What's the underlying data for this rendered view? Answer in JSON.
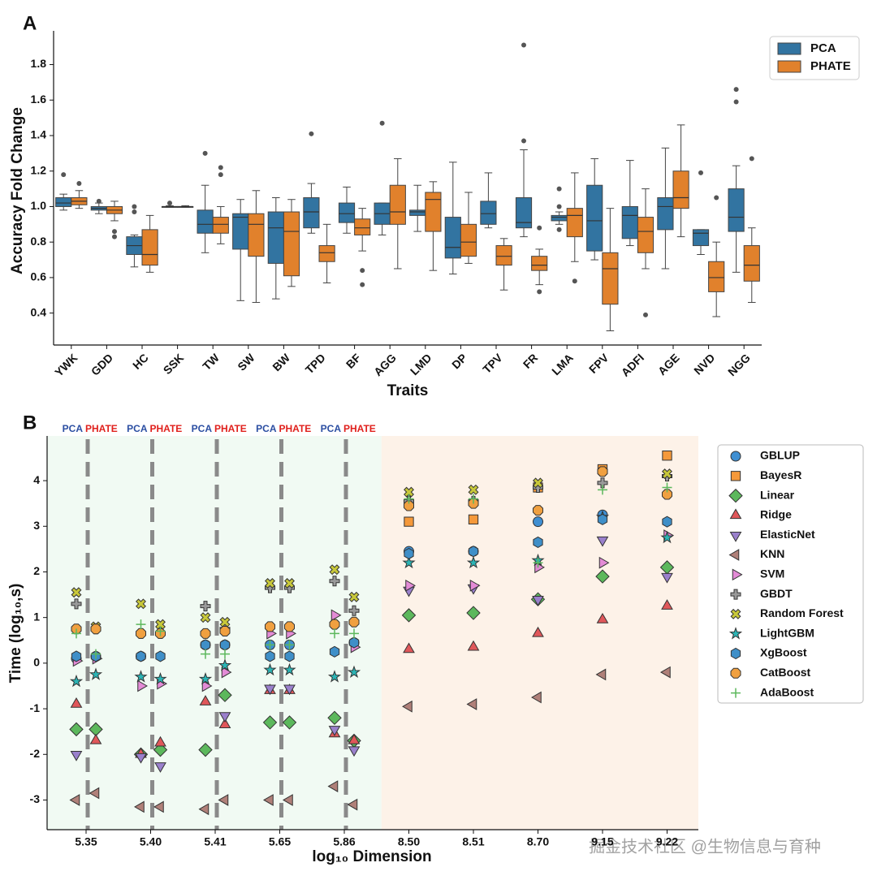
{
  "chart_data": [
    {
      "type": "box",
      "panel": "A",
      "ylabel": "Accuracy Fold Change",
      "xlabel": "Traits",
      "categories": [
        "YWK",
        "GDD",
        "HC",
        "SSK",
        "TW",
        "SW",
        "BW",
        "TPD",
        "BF",
        "AGG",
        "LMD",
        "DP",
        "TPV",
        "FR",
        "LMA",
        "FPV",
        "ADFI",
        "AGE",
        "NVD",
        "NGG"
      ],
      "ylim": [
        0.22,
        1.99
      ],
      "yticks": [
        0.4,
        0.6,
        0.8,
        {
          "value": 1,
          "label": "1.0"
        },
        1.2,
        1.4,
        1.6,
        1.8
      ],
      "legend": "upper right",
      "series": [
        {
          "name": "PCA",
          "color": "#3274a1",
          "min": [
            0.98,
            0.96,
            0.66,
            0.995,
            0.74,
            0.47,
            0.48,
            0.85,
            0.85,
            0.84,
            0.86,
            0.62,
            0.88,
            0.83,
            0.9,
            0.7,
            0.78,
            0.65,
            0.73,
            0.63
          ],
          "q1": [
            1.0,
            0.98,
            0.73,
            1.0,
            0.85,
            0.76,
            0.68,
            0.88,
            0.91,
            0.9,
            0.95,
            0.71,
            0.9,
            0.88,
            0.92,
            0.75,
            0.82,
            0.87,
            0.78,
            0.86
          ],
          "median": [
            1.02,
            0.99,
            0.78,
            1.0,
            0.9,
            0.94,
            0.88,
            0.97,
            0.96,
            0.96,
            0.97,
            0.77,
            0.96,
            0.91,
            0.94,
            0.92,
            0.95,
            1.0,
            0.85,
            0.94
          ],
          "q3": [
            1.05,
            1.0,
            0.83,
            1.0,
            0.98,
            0.96,
            0.97,
            1.05,
            1.02,
            1.02,
            0.98,
            0.94,
            1.03,
            1.05,
            0.95,
            1.12,
            1.0,
            1.05,
            0.87,
            1.1
          ],
          "max": [
            1.07,
            1.02,
            0.84,
            1.005,
            1.12,
            1.04,
            1.05,
            1.13,
            1.11,
            1.02,
            1.12,
            1.25,
            1.19,
            1.32,
            0.97,
            1.27,
            1.26,
            1.33,
            0.87,
            1.23
          ],
          "outliers": [
            [
              1.18
            ],
            [
              1.03
            ],
            [
              0.97,
              1.0
            ],
            [
              1.02
            ],
            [
              1.3
            ],
            [],
            [],
            [
              1.41
            ],
            [],
            [
              1.47
            ],
            [],
            [],
            [],
            [
              1.91,
              1.37
            ],
            [
              0.87,
              1.0,
              1.1
            ],
            [],
            [],
            [],
            [
              1.19
            ],
            [
              1.66,
              1.59
            ]
          ]
        },
        {
          "name": "PHATE",
          "color": "#e1812c",
          "min": [
            0.99,
            0.92,
            0.63,
            0.995,
            0.79,
            0.46,
            0.55,
            0.57,
            0.75,
            0.65,
            0.64,
            0.68,
            0.53,
            0.56,
            0.69,
            0.3,
            0.65,
            0.83,
            0.38,
            0.46
          ],
          "q1": [
            1.01,
            0.96,
            0.67,
            1.0,
            0.85,
            0.72,
            0.61,
            0.69,
            0.84,
            0.9,
            0.86,
            0.72,
            0.67,
            0.64,
            0.83,
            0.45,
            0.74,
            0.99,
            0.52,
            0.58
          ],
          "median": [
            1.03,
            0.98,
            0.73,
            1.0,
            0.9,
            0.9,
            0.86,
            0.74,
            0.88,
            0.97,
            1.04,
            0.8,
            0.72,
            0.67,
            0.95,
            0.65,
            0.86,
            1.05,
            0.6,
            0.67
          ],
          "q3": [
            1.05,
            1.0,
            0.87,
            1.0,
            0.94,
            0.96,
            0.97,
            0.78,
            0.93,
            1.12,
            1.08,
            0.9,
            0.78,
            0.72,
            0.99,
            0.74,
            0.94,
            1.2,
            0.69,
            0.78
          ],
          "max": [
            1.09,
            1.03,
            0.95,
            1.005,
            1.0,
            1.09,
            1.04,
            0.9,
            0.99,
            1.27,
            1.14,
            1.08,
            0.82,
            0.76,
            1.19,
            0.99,
            1.1,
            1.46,
            0.8,
            0.88
          ],
          "outliers": [
            [
              1.13
            ],
            [
              0.86,
              0.83
            ],
            [],
            [],
            [
              1.22,
              1.18
            ],
            [],
            [],
            [],
            [
              0.56,
              0.64
            ],
            [],
            [],
            [],
            [],
            [
              0.88,
              0.52
            ],
            [
              0.58
            ],
            [],
            [
              0.39
            ],
            [],
            [
              1.05
            ],
            [
              1.27
            ]
          ]
        }
      ]
    },
    {
      "type": "scatter",
      "panel": "B",
      "ylabel": "Time (log₁₀,s)",
      "xlabel": "log₁₀ Dimension",
      "groups": [
        "PCA",
        "PHATE"
      ],
      "categories": [
        "5.35",
        "5.40",
        "5.41",
        "5.65",
        "5.86",
        "8.50",
        "8.51",
        "8.70",
        "9.15",
        "9.22"
      ],
      "ylim": [
        -3.65,
        4.98
      ],
      "yticks": [
        -3,
        -2,
        -1,
        0,
        1,
        2,
        3,
        4
      ],
      "annotation": "掘金技术社区 @生物信息与育种",
      "series": [
        {
          "name": "GBLUP",
          "color": "#3f8fd2",
          "marker": "circle",
          "values": [
            0.1,
            0.15,
            0.4,
            0.4,
            0.85,
            2.45,
            2.45,
            3.1,
            3.25,
            3.7
          ],
          "values_phate": [
            0.15,
            null,
            0.4,
            0.4,
            0.45,
            null,
            null,
            null,
            null,
            null
          ]
        },
        {
          "name": "BayesR",
          "color": "#f5993a",
          "marker": "square",
          "values": [
            null,
            null,
            null,
            null,
            null,
            3.1,
            3.15,
            3.85,
            4.25,
            4.55
          ],
          "values_phate": [
            null,
            null,
            null,
            null,
            null,
            null,
            null,
            null,
            null,
            null
          ]
        },
        {
          "name": "Linear",
          "color": "#5cb85c",
          "marker": "diamond",
          "values": [
            -1.45,
            -2.0,
            -1.9,
            -1.3,
            -1.2,
            1.05,
            1.1,
            1.4,
            1.9,
            2.1
          ],
          "values_phate": [
            -1.45,
            -1.9,
            -0.7,
            -1.3,
            -1.7,
            null,
            null,
            null,
            null,
            null
          ]
        },
        {
          "name": "Ridge",
          "color": "#e0575a",
          "marker": "tri-up",
          "values": [
            -0.9,
            -2.0,
            -0.85,
            -0.6,
            -1.55,
            0.3,
            0.35,
            0.65,
            0.95,
            1.25
          ],
          "values_phate": [
            -1.7,
            -1.75,
            -1.35,
            -0.6,
            -1.7,
            null,
            null,
            null,
            null,
            null
          ]
        },
        {
          "name": "ElasticNet",
          "color": "#9a80cc",
          "marker": "tri-down",
          "values": [
            -2.0,
            -2.05,
            null,
            -0.55,
            -1.45,
            1.6,
            1.65,
            1.4,
            2.7,
            1.9
          ],
          "values_phate": [
            null,
            -2.25,
            -1.15,
            -0.55,
            -1.9,
            null,
            null,
            null,
            null,
            null
          ]
        },
        {
          "name": "KNN",
          "color": "#b08079",
          "marker": "tri-left",
          "values": [
            -3.0,
            -3.15,
            -3.2,
            -3.0,
            -2.7,
            -0.95,
            -0.9,
            -0.75,
            -0.25,
            -0.2
          ],
          "values_phate": [
            -2.85,
            -3.15,
            -3.0,
            -3.0,
            -3.1,
            null,
            null,
            null,
            null,
            null
          ]
        },
        {
          "name": "SVM",
          "color": "#e38bd6",
          "marker": "tri-right",
          "values": [
            0.05,
            -0.5,
            -0.5,
            0.65,
            1.05,
            1.7,
            1.7,
            2.1,
            2.2,
            2.8
          ],
          "values_phate": [
            0.1,
            -0.45,
            -0.2,
            0.65,
            0.35,
            null,
            null,
            null,
            null,
            null
          ]
        },
        {
          "name": "GBDT",
          "color": "#9a9a9a",
          "marker": "plus-filled",
          "values": [
            1.3,
            0.65,
            1.25,
            1.65,
            1.8,
            3.55,
            3.55,
            3.85,
            3.95,
            4.1
          ],
          "values_phate": [
            0.75,
            0.65,
            0.75,
            1.65,
            1.15,
            null,
            null,
            null,
            null,
            null
          ]
        },
        {
          "name": "Random Forest",
          "color": "#c8c83a",
          "marker": "x-filled",
          "values": [
            1.55,
            1.3,
            1.0,
            1.75,
            2.05,
            3.75,
            3.8,
            3.95,
            4.2,
            4.15
          ],
          "values_phate": [
            0.8,
            0.85,
            0.9,
            1.75,
            1.45,
            null,
            null,
            null,
            null,
            null
          ]
        },
        {
          "name": "LightGBM",
          "color": "#2bb5b5",
          "marker": "star",
          "values": [
            -0.4,
            -0.3,
            -0.35,
            -0.15,
            -0.3,
            2.2,
            2.2,
            2.25,
            3.2,
            2.75
          ],
          "values_phate": [
            -0.25,
            -0.35,
            -0.05,
            -0.15,
            -0.2,
            null,
            null,
            null,
            null,
            null
          ]
        },
        {
          "name": "XgBoost",
          "color": "#3f8fc8",
          "marker": "hexagon",
          "values": [
            0.15,
            0.15,
            0.4,
            0.15,
            0.25,
            2.4,
            2.45,
            2.65,
            3.15,
            3.1
          ],
          "values_phate": [
            0.15,
            0.15,
            0.4,
            0.15,
            0.45,
            null,
            null,
            null,
            null,
            null
          ]
        },
        {
          "name": "CatBoost",
          "color": "#f0a040",
          "marker": "octagon",
          "values": [
            0.75,
            0.65,
            0.65,
            0.8,
            0.85,
            3.45,
            3.5,
            3.35,
            4.2,
            3.7
          ],
          "values_phate": [
            0.75,
            0.65,
            0.7,
            0.8,
            0.9,
            null,
            null,
            null,
            null,
            null
          ]
        },
        {
          "name": "AdaBoost",
          "color": "#5cb85c",
          "marker": "plus",
          "values": [
            0.65,
            0.85,
            0.2,
            0.4,
            0.65,
            3.6,
            3.6,
            2.2,
            3.8,
            3.85
          ],
          "values_phate": [
            0.2,
            0.7,
            0.2,
            0.4,
            0.65,
            null,
            null,
            null,
            null,
            null
          ]
        }
      ]
    }
  ]
}
